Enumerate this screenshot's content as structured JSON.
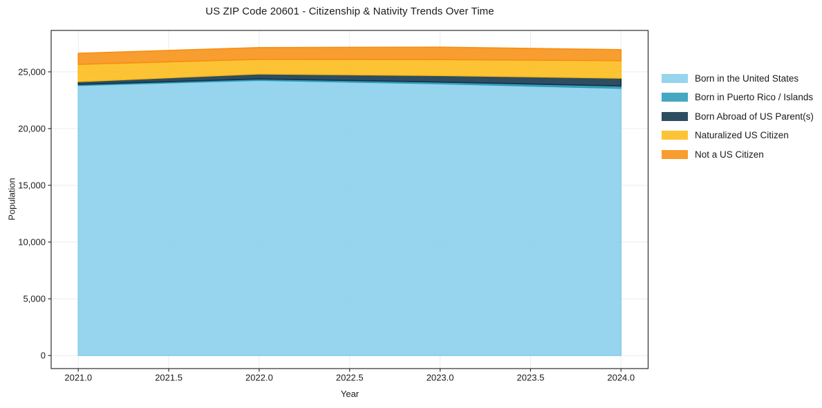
{
  "chart_data": {
    "type": "area",
    "stacked": true,
    "title": "US ZIP Code 20601 - Citizenship & Nativity Trends Over Time",
    "xlabel": "Year",
    "ylabel": "Population",
    "x": [
      2021,
      2022,
      2023,
      2024
    ],
    "series": [
      {
        "id": "born-us",
        "name": "Born in the United States",
        "color": "#87CEEB",
        "values": [
          23800,
          24250,
          23950,
          23550
        ]
      },
      {
        "id": "puerto-rico",
        "name": "Born in Puerto Rico / Islands",
        "color": "#2B9AB8",
        "values": [
          90,
          120,
          150,
          200
        ]
      },
      {
        "id": "born-abroad",
        "name": "Born Abroad of US Parent(s)",
        "color": "#0F3349",
        "values": [
          250,
          450,
          580,
          700
        ]
      },
      {
        "id": "naturalized",
        "name": "Naturalized US Citizen",
        "color": "#FBBB17",
        "values": [
          1520,
          1280,
          1400,
          1530
        ]
      },
      {
        "id": "not-citizen",
        "name": "Not a US Citizen",
        "color": "#F78F11",
        "values": [
          975,
          1040,
          1100,
          975
        ]
      }
    ],
    "x_ticks": [
      2021.0,
      2021.5,
      2022.0,
      2022.5,
      2023.0,
      2023.5,
      2024.0
    ],
    "x_tick_labels": [
      "2021.0",
      "2021.5",
      "2022.0",
      "2022.5",
      "2023.0",
      "2023.5",
      "2024.0"
    ],
    "y_ticks": [
      0,
      5000,
      10000,
      15000,
      20000,
      25000
    ],
    "y_tick_labels": [
      "0",
      "5,000",
      "10,000",
      "15,000",
      "20,000",
      "25,000"
    ],
    "xlim": [
      2020.85,
      2024.15
    ],
    "ylim": [
      -1150,
      28650
    ],
    "grid": true,
    "legend_position": "right-outside",
    "style": {
      "grid_color": "#ebebf0",
      "spine_color": "#2b2b2b",
      "text_color": "#1a1a1a",
      "fill_alpha": 0.87
    }
  }
}
